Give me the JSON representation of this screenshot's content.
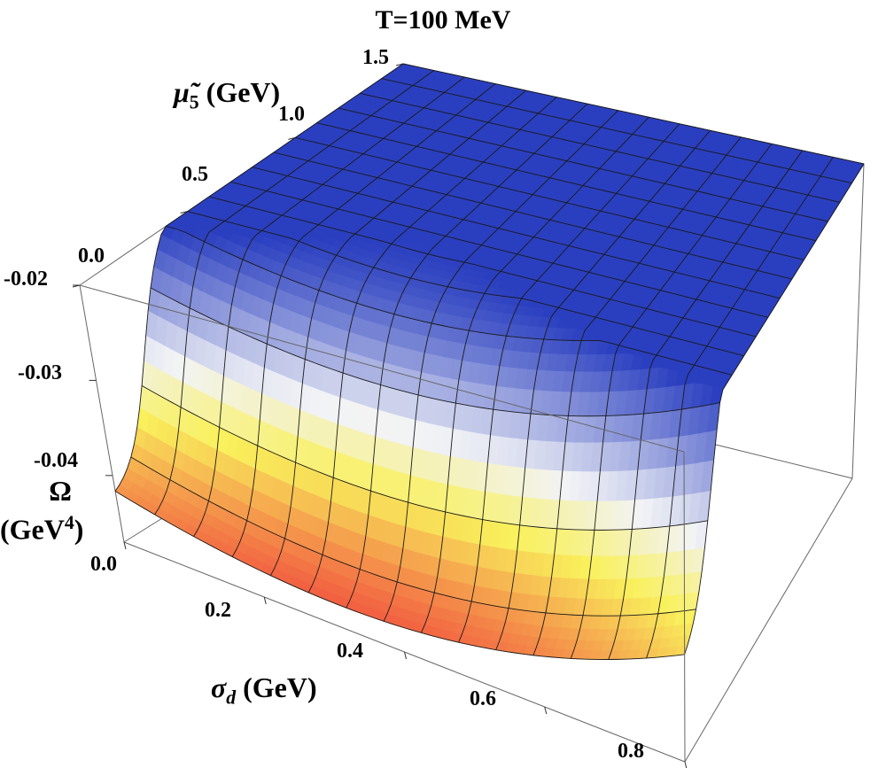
{
  "chart_data": {
    "type": "surface3d",
    "title": "T=100 MeV",
    "x_axis": {
      "label_symbol": "σ",
      "label_sub": "d",
      "label_unit": "(GeV)",
      "range": [
        0.0,
        0.8
      ],
      "ticks": [
        "0.0",
        "0.2",
        "0.4",
        "0.6",
        "0.8"
      ]
    },
    "y_axis": {
      "label_symbol": "μ̃",
      "label_sub": "5",
      "label_unit": "(GeV)",
      "range": [
        0.0,
        1.5
      ],
      "ticks": [
        "0.0",
        "0.5",
        "1.0",
        "1.5"
      ]
    },
    "z_axis": {
      "label_symbol": "Ω",
      "label_unit": "(GeV",
      "label_sup": "4",
      "label_close": ")",
      "range": [
        -0.047,
        -0.02
      ],
      "ticks": [
        "-0.02",
        "-0.03",
        "-0.04"
      ]
    },
    "grid": {
      "x_lines": 15,
      "y_lines": 15
    },
    "surface_description": "Omega rises from about -0.044 at mu5=0 to -0.02 at mu5=1.5; shallow minimum near sigma_d~0.3 GeV",
    "colormap": [
      "#f0393a",
      "#f9f15c",
      "#f2f3f6",
      "#2a3fc0"
    ]
  }
}
